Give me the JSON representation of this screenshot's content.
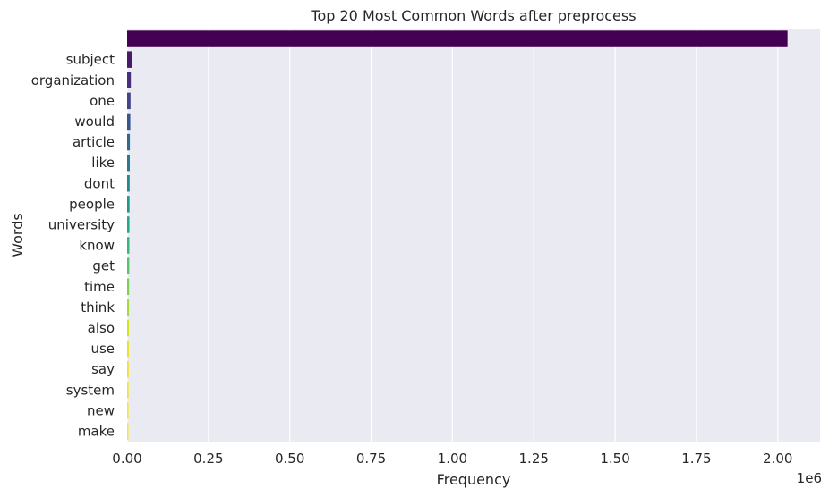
{
  "chart_data": {
    "type": "bar",
    "orientation": "horizontal",
    "title": "Top 20 Most Common Words after preprocess",
    "xlabel": "Frequency",
    "ylabel": "Words",
    "x_offset_label": "1e6",
    "xlim": [
      0,
      2.13
    ],
    "xticks": [
      0.0,
      0.25,
      0.5,
      0.75,
      1.0,
      1.25,
      1.5,
      1.75,
      2.0
    ],
    "xtick_labels": [
      "0.00",
      "0.25",
      "0.50",
      "0.75",
      "1.00",
      "1.25",
      "1.50",
      "1.75",
      "2.00"
    ],
    "grid": true,
    "legend": "none",
    "categories": [
      "",
      "subject",
      "organization",
      "one",
      "would",
      "article",
      "like",
      "dont",
      "people",
      "university",
      "know",
      "get",
      "time",
      "think",
      "also",
      "use",
      "say",
      "system",
      "new",
      "make"
    ],
    "values": [
      2.03,
      0.0145,
      0.0115,
      0.0105,
      0.0098,
      0.0085,
      0.0082,
      0.0078,
      0.0074,
      0.0071,
      0.0069,
      0.0066,
      0.0061,
      0.0058,
      0.0055,
      0.0052,
      0.0049,
      0.0046,
      0.0043,
      0.0041
    ],
    "colors": [
      "#440154",
      "#481a6c",
      "#472f7d",
      "#414487",
      "#39568c",
      "#31688e",
      "#2a788e",
      "#23888e",
      "#1f988b",
      "#22a884",
      "#35b779",
      "#54c568",
      "#7ad151",
      "#a5db36",
      "#d2e21b",
      "#e8e419",
      "#f1e51d",
      "#f6e620",
      "#fae722",
      "#fde725"
    ]
  }
}
